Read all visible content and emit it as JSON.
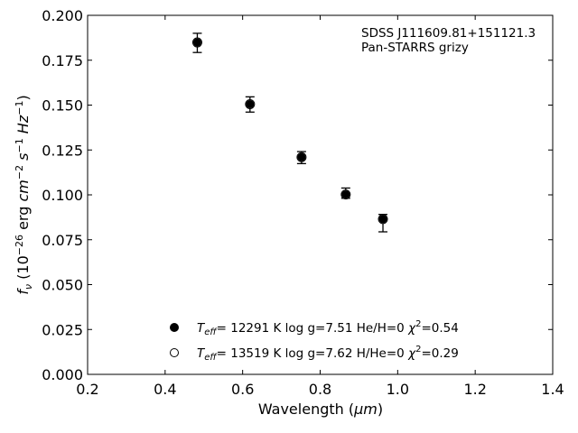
{
  "chart_data": {
    "type": "scatter",
    "annotation": [
      "SDSS J111609.81+151121.3",
      "Pan-STARRS grizy"
    ],
    "xlabel": {
      "prefix": "Wavelength (",
      "unit": "μm",
      "suffix": ")"
    },
    "ylabel": {
      "sym": "f",
      "sub": "ν",
      "open": " (10",
      "exp1": "−26",
      "mid": " erg ",
      "cm": "cm",
      "exp2": "−2",
      "s": " s",
      "exp3": "−1",
      "hz": " Hz",
      "exp4": "−1",
      "close": ")"
    },
    "xlim": [
      0.2,
      1.4
    ],
    "ylim": [
      0.0,
      0.2
    ],
    "x_ticks": [
      "0.2",
      "0.4",
      "0.6",
      "0.8",
      "1.0",
      "1.2",
      "1.4"
    ],
    "y_ticks": [
      "0.000",
      "0.025",
      "0.050",
      "0.075",
      "0.100",
      "0.125",
      "0.150",
      "0.175",
      "0.200"
    ],
    "x_tick_values": [
      0.2,
      0.4,
      0.6,
      0.8,
      1.0,
      1.2,
      1.4
    ],
    "y_tick_values": [
      0.0,
      0.025,
      0.05,
      0.075,
      0.1,
      0.125,
      0.15,
      0.175,
      0.2
    ],
    "grid": false,
    "legend_position": "bottom-center",
    "points": [
      {
        "x": 0.483,
        "y": 0.1849,
        "yerr_low": 0.0056,
        "yerr_high": 0.0051
      },
      {
        "x": 0.619,
        "y": 0.1505,
        "yerr_low": 0.0044,
        "yerr_high": 0.0041
      },
      {
        "x": 0.752,
        "y": 0.121,
        "yerr_low": 0.0036,
        "yerr_high": 0.0031
      },
      {
        "x": 0.866,
        "y": 0.1002,
        "yerr_low": 0.0021,
        "yerr_high": 0.0036
      },
      {
        "x": 0.962,
        "y": 0.0865,
        "yerr_low": 0.0071,
        "yerr_high": 0.0026
      }
    ],
    "series": [
      {
        "marker": "filled-circle",
        "teff_label": "T",
        "teff_sub": "eff",
        "text_a": "= 12291 K  log g=7.51  He/H=0  ",
        "chi": "χ",
        "chi_exp": "2",
        "text_b": "=0.54"
      },
      {
        "marker": "open-circle",
        "teff_label": "T",
        "teff_sub": "eff",
        "text_a": "= 13519 K  log g=7.62  H/He=0  ",
        "chi": "χ",
        "chi_exp": "2",
        "text_b": "=0.29"
      }
    ]
  }
}
